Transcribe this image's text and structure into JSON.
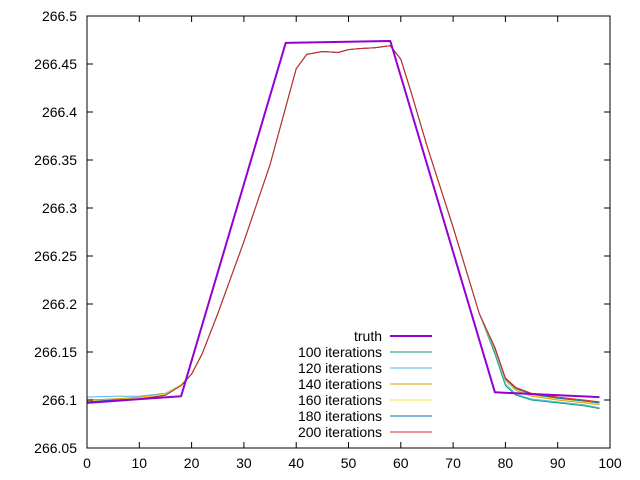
{
  "chart_data": {
    "type": "line",
    "title": "",
    "xlabel": "",
    "ylabel": "",
    "xlim": [
      0,
      100
    ],
    "ylim": [
      266.05,
      266.5
    ],
    "xticks": [
      0,
      10,
      20,
      30,
      40,
      50,
      60,
      70,
      80,
      90,
      100
    ],
    "yticks": [
      266.05,
      266.1,
      266.15,
      266.2,
      266.25,
      266.3,
      266.35,
      266.4,
      266.45,
      266.5
    ],
    "xtick_labels": [
      "0",
      "10",
      "20",
      "30",
      "40",
      "50",
      "60",
      "70",
      "80",
      "90",
      "100"
    ],
    "ytick_labels": [
      "266.05",
      "266.1",
      "266.15",
      "266.2",
      "266.25",
      "266.3",
      "266.35",
      "266.4",
      "266.45",
      "266.5"
    ],
    "grid": false,
    "legend_position": "bottom-center",
    "series": [
      {
        "name": "truth",
        "color": "#9400d3",
        "x": [
          0,
          18,
          38,
          58,
          78,
          98
        ],
        "y": [
          266.097,
          266.104,
          266.472,
          266.474,
          266.108,
          266.103
        ]
      },
      {
        "name": "100 iterations",
        "color": "#009e73",
        "x": [
          0,
          5,
          10,
          15,
          18,
          20,
          22,
          25,
          30,
          35,
          38,
          40,
          42,
          45,
          48,
          50,
          52,
          55,
          58,
          60,
          62,
          65,
          70,
          75,
          78,
          80,
          82,
          85,
          90,
          95,
          98
        ],
        "y": [
          266.1,
          266.101,
          266.102,
          266.106,
          266.115,
          266.127,
          266.148,
          266.19,
          266.265,
          266.345,
          266.405,
          266.445,
          266.46,
          266.463,
          266.462,
          266.465,
          266.466,
          266.467,
          266.469,
          266.455,
          266.42,
          266.365,
          266.28,
          266.19,
          266.148,
          266.115,
          266.105,
          266.1,
          266.097,
          266.094,
          266.091
        ]
      },
      {
        "name": "120 iterations",
        "color": "#56b4e9",
        "x": [
          0,
          5,
          10,
          15,
          18,
          20,
          22,
          25,
          30,
          35,
          38,
          40,
          42,
          45,
          48,
          50,
          52,
          55,
          58,
          60,
          62,
          65,
          70,
          75,
          78,
          80,
          82,
          85,
          90,
          95,
          98
        ],
        "y": [
          266.103,
          266.104,
          266.104,
          266.107,
          266.116,
          266.127,
          266.148,
          266.19,
          266.265,
          266.345,
          266.405,
          266.445,
          266.46,
          266.463,
          266.462,
          266.465,
          266.466,
          266.467,
          266.469,
          266.455,
          266.42,
          266.365,
          266.28,
          266.19,
          266.15,
          266.117,
          266.106,
          266.101,
          266.098,
          266.095,
          266.092
        ]
      },
      {
        "name": "140 iterations",
        "color": "#e69f00",
        "x": [
          0,
          5,
          10,
          15,
          18,
          20,
          22,
          25,
          30,
          35,
          38,
          40,
          42,
          45,
          48,
          50,
          52,
          55,
          58,
          60,
          62,
          65,
          70,
          75,
          78,
          80,
          82,
          85,
          90,
          95,
          98
        ],
        "y": [
          266.1,
          266.101,
          266.103,
          266.106,
          266.116,
          266.127,
          266.148,
          266.19,
          266.265,
          266.345,
          266.405,
          266.445,
          266.46,
          266.463,
          266.462,
          266.465,
          266.466,
          266.467,
          266.469,
          266.455,
          266.42,
          266.365,
          266.28,
          266.19,
          266.152,
          266.12,
          266.11,
          266.104,
          266.1,
          266.097,
          266.095
        ]
      },
      {
        "name": "160 iterations",
        "color": "#f0e442",
        "x": [
          0,
          5,
          10,
          15,
          18,
          20,
          22,
          25,
          30,
          35,
          38,
          40,
          42,
          45,
          48,
          50,
          52,
          55,
          58,
          60,
          62,
          65,
          70,
          75,
          78,
          80,
          82,
          85,
          90,
          95,
          98
        ],
        "y": [
          266.099,
          266.1,
          266.102,
          266.106,
          266.116,
          266.127,
          266.148,
          266.19,
          266.265,
          266.345,
          266.405,
          266.445,
          266.46,
          266.463,
          266.462,
          266.465,
          266.466,
          266.467,
          266.469,
          266.455,
          266.42,
          266.365,
          266.28,
          266.19,
          266.153,
          266.121,
          266.111,
          266.105,
          266.101,
          266.098,
          266.096
        ]
      },
      {
        "name": "180 iterations",
        "color": "#0072b2",
        "x": [
          0,
          5,
          10,
          15,
          18,
          20,
          22,
          25,
          30,
          35,
          38,
          40,
          42,
          45,
          48,
          50,
          52,
          55,
          58,
          60,
          62,
          65,
          70,
          75,
          78,
          80,
          82,
          85,
          90,
          95,
          98
        ],
        "y": [
          266.098,
          266.1,
          266.101,
          266.105,
          266.115,
          266.127,
          266.148,
          266.19,
          266.265,
          266.345,
          266.405,
          266.445,
          266.46,
          266.463,
          266.462,
          266.465,
          266.466,
          266.467,
          266.469,
          266.455,
          266.42,
          266.365,
          266.28,
          266.19,
          266.154,
          266.122,
          266.112,
          266.106,
          266.102,
          266.099,
          266.097
        ]
      },
      {
        "name": "200 iterations",
        "color": "#d62728",
        "x": [
          0,
          5,
          10,
          15,
          18,
          20,
          22,
          25,
          30,
          35,
          38,
          40,
          42,
          45,
          48,
          50,
          52,
          55,
          58,
          60,
          62,
          65,
          70,
          75,
          78,
          80,
          82,
          85,
          90,
          95,
          98
        ],
        "y": [
          266.097,
          266.099,
          266.101,
          266.105,
          266.115,
          266.127,
          266.148,
          266.19,
          266.265,
          266.345,
          266.405,
          266.445,
          266.46,
          266.463,
          266.462,
          266.465,
          266.466,
          266.467,
          266.469,
          266.455,
          266.42,
          266.365,
          266.28,
          266.19,
          266.155,
          266.123,
          266.113,
          266.107,
          266.103,
          266.1,
          266.098
        ]
      }
    ]
  }
}
